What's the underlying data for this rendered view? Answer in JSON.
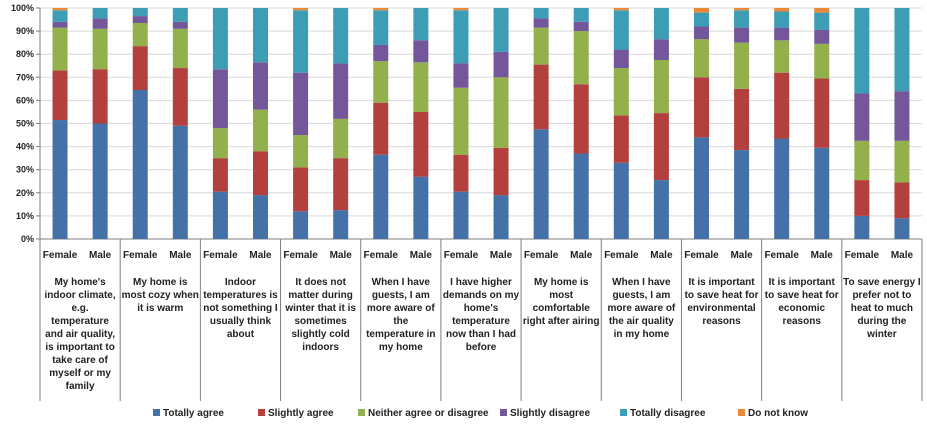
{
  "chart_data": {
    "type": "bar",
    "stacked": true,
    "percent_stacked": true,
    "y_ticks": [
      "0%",
      "10%",
      "20%",
      "30%",
      "40%",
      "50%",
      "60%",
      "70%",
      "80%",
      "90%",
      "100%"
    ],
    "ylim": [
      0,
      100
    ],
    "grid": true,
    "legend_position": "bottom",
    "groups": [
      {
        "label": [
          "My home's",
          "indoor climate,",
          "e.g.",
          "temperature",
          "and air quality,",
          "is important to",
          "take care of",
          "myself or my",
          "family"
        ],
        "bars": [
          {
            "sex": "Female",
            "values": [
              51.5,
              21.5,
              18.5,
              2.5,
              5,
              1
            ]
          },
          {
            "sex": "Male",
            "values": [
              50,
              23.5,
              17.5,
              4.5,
              4.5,
              0
            ]
          }
        ]
      },
      {
        "label": [
          "My home is",
          "most cozy when",
          "it is warm"
        ],
        "bars": [
          {
            "sex": "Female",
            "values": [
              64.5,
              19,
              10,
              3,
              3.5,
              0
            ]
          },
          {
            "sex": "Male",
            "values": [
              49,
              25,
              17,
              3,
              6,
              0
            ]
          }
        ]
      },
      {
        "label": [
          "Indoor",
          "temperatures is",
          "not something I",
          "usually think",
          "about"
        ],
        "bars": [
          {
            "sex": "Female",
            "values": [
              20.5,
              14.5,
              13,
              25.5,
              26.5,
              0
            ]
          },
          {
            "sex": "Male",
            "values": [
              19,
              19,
              18,
              20.5,
              23.5,
              0
            ]
          }
        ]
      },
      {
        "label": [
          "It does not",
          "matter during",
          "winter that it is",
          "sometimes",
          "slightly cold",
          "indoors"
        ],
        "bars": [
          {
            "sex": "Female",
            "values": [
              12,
              19,
              14,
              27,
              27,
              1
            ]
          },
          {
            "sex": "Male",
            "values": [
              12.5,
              22.5,
              17,
              24,
              24,
              0
            ]
          }
        ]
      },
      {
        "label": [
          "When I have",
          "guests, I am",
          "more aware of",
          "the",
          "temperature in",
          "my home"
        ],
        "bars": [
          {
            "sex": "Female",
            "values": [
              36.5,
              22.5,
              18,
              7,
              15,
              1
            ]
          },
          {
            "sex": "Male",
            "values": [
              27,
              28,
              21.5,
              9.5,
              14,
              0
            ]
          }
        ]
      },
      {
        "label": [
          "I have higher",
          "demands on my",
          "home's",
          "temperature",
          "now than I had",
          "before"
        ],
        "bars": [
          {
            "sex": "Female",
            "values": [
              20.5,
              16,
              29,
              10.5,
              23,
              1
            ]
          },
          {
            "sex": "Male",
            "values": [
              19,
              20.5,
              30.5,
              11,
              19,
              0
            ]
          }
        ]
      },
      {
        "label": [
          "My home is",
          "most",
          "comfortable",
          "right after airing"
        ],
        "bars": [
          {
            "sex": "Female",
            "values": [
              47.5,
              28,
              16,
              4,
              4.5,
              0
            ]
          },
          {
            "sex": "Male",
            "values": [
              37,
              30,
              23,
              4,
              6,
              0
            ]
          }
        ]
      },
      {
        "label": [
          "When I have",
          "guests, I am",
          "more aware of",
          "the air quality",
          "in my home"
        ],
        "bars": [
          {
            "sex": "Female",
            "values": [
              33,
              20.5,
              20.5,
              8,
              17,
              1
            ]
          },
          {
            "sex": "Male",
            "values": [
              25.5,
              29,
              23,
              9,
              13.5,
              0
            ]
          }
        ]
      },
      {
        "label": [
          "It is important",
          "to save heat for",
          "environmental",
          "reasons"
        ],
        "bars": [
          {
            "sex": "Female",
            "values": [
              44,
              26,
              16.5,
              5.5,
              6,
              2
            ]
          },
          {
            "sex": "Male",
            "values": [
              38.5,
              26.5,
              20,
              6.5,
              7.5,
              1
            ]
          }
        ]
      },
      {
        "label": [
          "It is important",
          "to save heat for",
          "economic",
          "reasons"
        ],
        "bars": [
          {
            "sex": "Female",
            "values": [
              43.5,
              28.5,
              14,
              5.5,
              7,
              1.5
            ]
          },
          {
            "sex": "Male",
            "values": [
              39.5,
              30,
              15,
              6,
              7.5,
              2
            ]
          }
        ]
      },
      {
        "label": [
          "To save energy I",
          "prefer not to",
          "heat to much",
          "during the",
          "winter"
        ],
        "bars": [
          {
            "sex": "Female",
            "values": [
              10,
              15.5,
              17,
              20.5,
              37,
              0
            ]
          },
          {
            "sex": "Male",
            "values": [
              9,
              15.5,
              18,
              21.5,
              36,
              0
            ]
          }
        ]
      }
    ],
    "series": [
      {
        "name": "Totally agree",
        "color": "#4472A8"
      },
      {
        "name": "Slightly agree",
        "color": "#B3403D"
      },
      {
        "name": "Neither agree or disagree",
        "color": "#92B04C"
      },
      {
        "name": "Slightly disagree",
        "color": "#74569A"
      },
      {
        "name": "Totally disagree",
        "color": "#3D9DB5"
      },
      {
        "name": "Do not know",
        "color": "#E88A3A"
      }
    ]
  }
}
